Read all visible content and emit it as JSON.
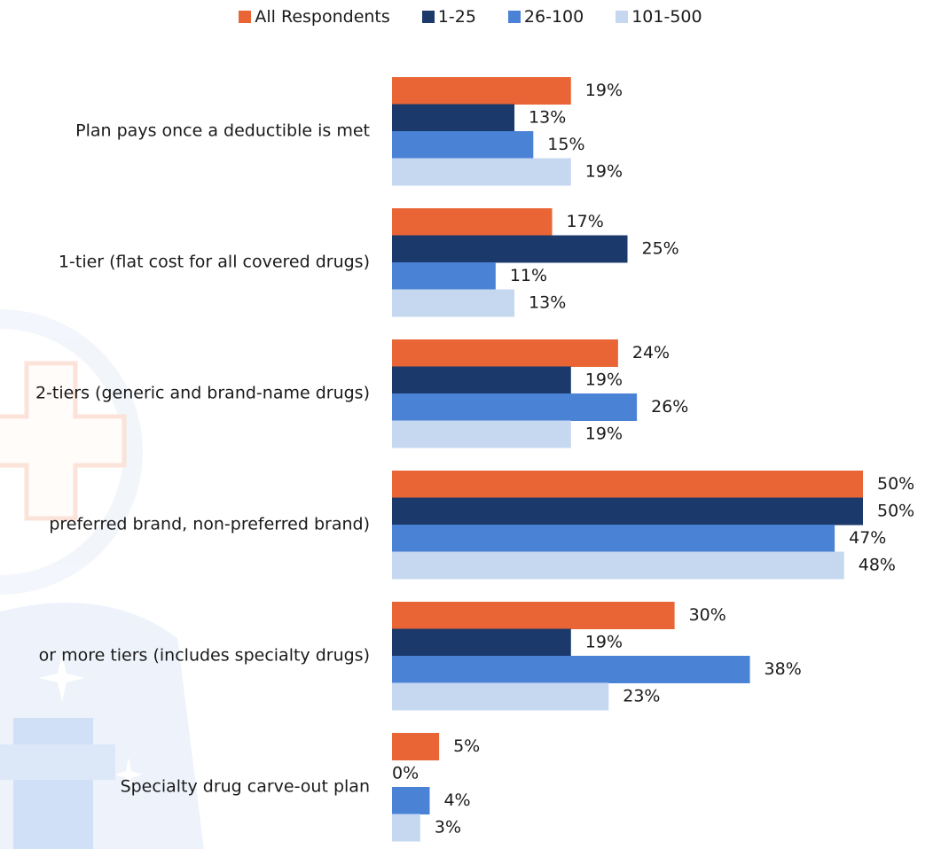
{
  "chart_data": {
    "type": "bar",
    "orientation": "horizontal",
    "categories": [
      "Plan pays once a deductible is met",
      "1-tier (flat cost for all covered drugs)",
      "2-tiers (generic and brand-name drugs)",
      "preferred brand, non-preferred brand)",
      "or more tiers (includes specialty drugs)",
      "Specialty drug carve-out plan"
    ],
    "series": [
      {
        "name": "All Respondents",
        "color": "#e96535",
        "values": [
          19,
          17,
          24,
          50,
          30,
          5
        ]
      },
      {
        "name": "1-25",
        "color": "#1b3a6b",
        "values": [
          13,
          25,
          19,
          50,
          19,
          0
        ]
      },
      {
        "name": "26-100",
        "color": "#4a82d6",
        "values": [
          15,
          11,
          26,
          47,
          38,
          4
        ]
      },
      {
        "name": "101-500",
        "color": "#c5d8f0",
        "values": [
          19,
          13,
          19,
          48,
          23,
          3
        ]
      }
    ],
    "value_format": "percent",
    "xlim": [
      0,
      50
    ],
    "legend_position": "top",
    "grid": false
  }
}
